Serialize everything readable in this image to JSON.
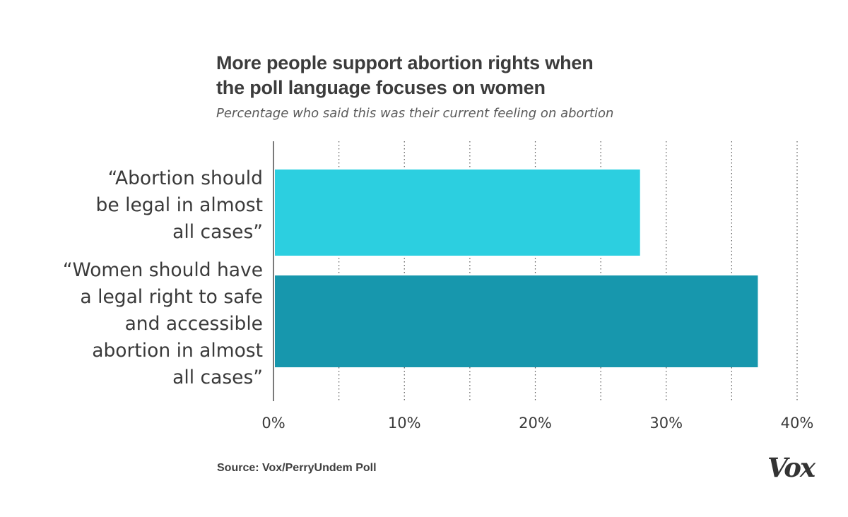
{
  "chart_data": {
    "type": "bar",
    "orientation": "horizontal",
    "title_lines": [
      "More people support abortion rights when",
      "the poll language focuses on women"
    ],
    "subtitle": "Percentage who said this was their current feeling on abortion",
    "categories": [
      {
        "label_lines": [
          "“Abortion should",
          "be legal in almost",
          "all cases”"
        ]
      },
      {
        "label_lines": [
          "“Women should have",
          "a legal right to safe",
          "and accessible",
          "abortion in almost",
          "all cases”"
        ]
      }
    ],
    "values": [
      28,
      37
    ],
    "bar_colors": [
      "#2ccfe0",
      "#1797ad"
    ],
    "x_tick_values": [
      0,
      10,
      20,
      30,
      40
    ],
    "x_tick_labels": [
      "0%",
      "10%",
      "20%",
      "30%",
      "40%"
    ],
    "xlim": [
      0,
      40
    ],
    "gridlines": [
      5,
      10,
      15,
      20,
      25,
      30,
      35,
      40
    ],
    "grid": "dotted vertical",
    "source": "Source: Vox/PerryUndem Poll"
  },
  "branding": {
    "logo_text": "Vox"
  }
}
